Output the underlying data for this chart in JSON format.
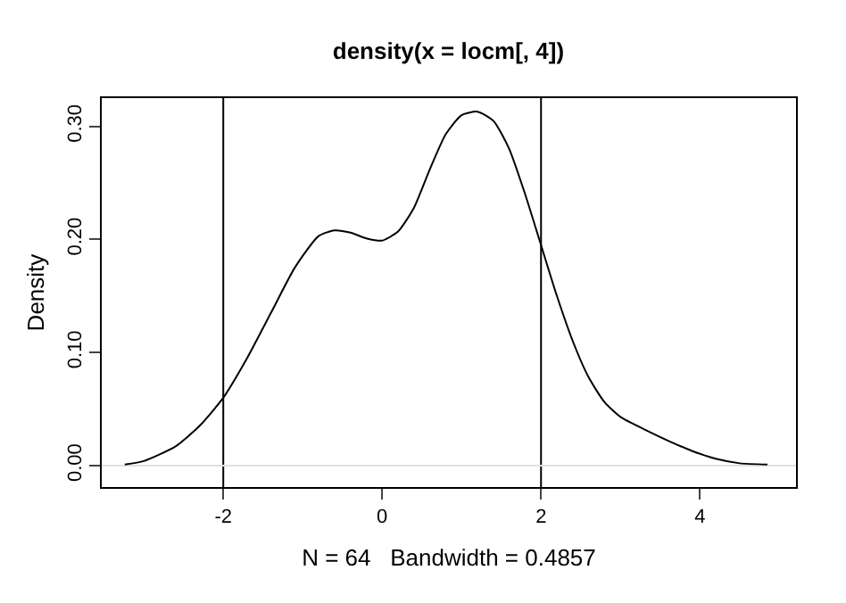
{
  "chart_data": {
    "type": "line",
    "title": "density(x = locm[, 4])",
    "xlabel": "N = 64   Bandwidth = 0.4857",
    "ylabel": "Density",
    "x": [
      -3.24,
      -3.0,
      -2.6,
      -2.3,
      -2.0,
      -1.7,
      -1.4,
      -1.1,
      -0.8,
      -0.6,
      -0.4,
      -0.2,
      0,
      0.2,
      0.4,
      0.6,
      0.8,
      1.0,
      1.2,
      1.4,
      1.6,
      1.8,
      2.0,
      2.2,
      2.4,
      2.6,
      2.8,
      3.0,
      3.3,
      3.6,
      3.9,
      4.2,
      4.5,
      4.85
    ],
    "series": [
      {
        "color": "#000000",
        "values": [
          0.001,
          0.004,
          0.017,
          0.035,
          0.06,
          0.095,
          0.135,
          0.175,
          0.203,
          0.208,
          0.206,
          0.201,
          0.199,
          0.207,
          0.228,
          0.262,
          0.293,
          0.31,
          0.313,
          0.305,
          0.28,
          0.24,
          0.195,
          0.15,
          0.11,
          0.078,
          0.056,
          0.043,
          0.032,
          0.022,
          0.013,
          0.006,
          0.002,
          0.001
        ]
      }
    ],
    "xlim": [
      -3.53,
      5.21
    ],
    "ylim": [
      -0.019,
      0.325
    ],
    "xticks": [
      -2,
      0,
      2,
      4
    ],
    "yticks": [
      {
        "value": 0,
        "label": "0.00"
      },
      {
        "value": 0.1,
        "label": "0.10"
      },
      {
        "value": 0.2,
        "label": "0.20"
      },
      {
        "value": 0.3,
        "label": "0.30"
      }
    ],
    "ref_lines": [
      {
        "axis": "x",
        "value": -2,
        "color": "#000000"
      },
      {
        "axis": "x",
        "value": 2,
        "color": "#000000"
      },
      {
        "axis": "y",
        "value": 0,
        "color": "#e0e0e0"
      }
    ],
    "grid": false,
    "legend": false,
    "marker": "none",
    "line_style": "solid"
  }
}
